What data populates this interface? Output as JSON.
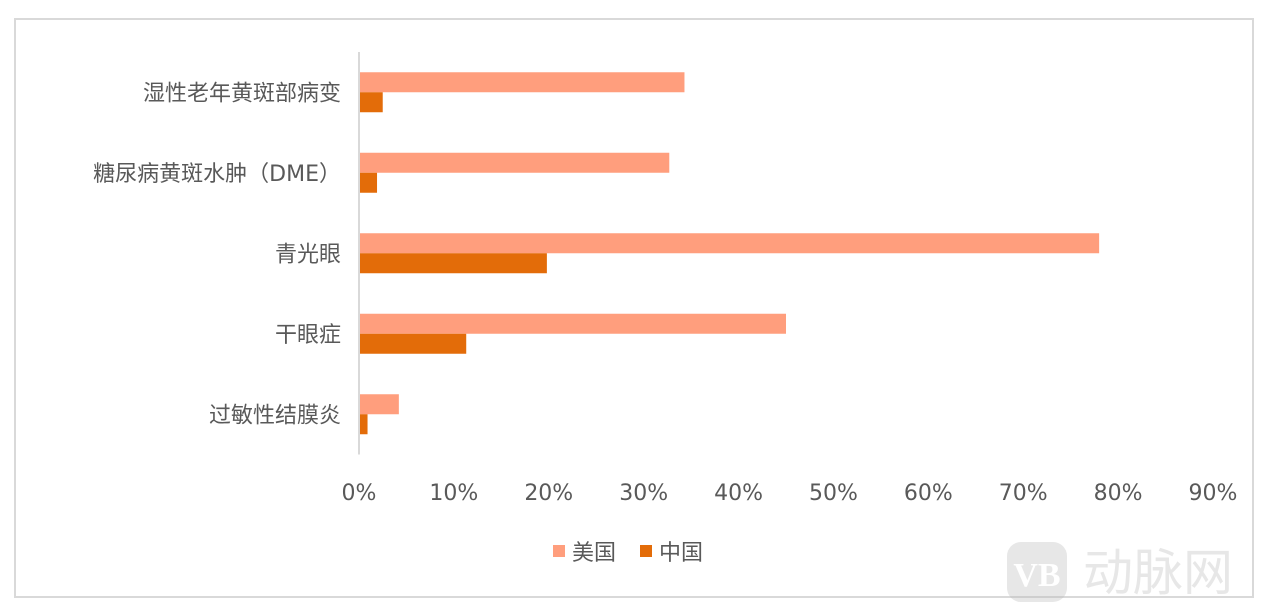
{
  "chart_data": {
    "type": "bar",
    "orientation": "horizontal",
    "categories": [
      "湿性老年黄斑部病变",
      "糖尿病黄斑水肿（DME）",
      "青光眼",
      "干眼症",
      "过敏性结膜炎"
    ],
    "series": [
      {
        "name": "美国",
        "color": "#ff9e7d",
        "values": [
          34.3,
          32.7,
          78.0,
          45.0,
          4.2
        ]
      },
      {
        "name": "中国",
        "color": "#e36c09",
        "values": [
          2.5,
          1.9,
          19.8,
          11.3,
          0.9
        ]
      }
    ],
    "xlim": [
      0,
      90
    ],
    "xticks": [
      "0%",
      "10%",
      "20%",
      "30%",
      "40%",
      "50%",
      "60%",
      "70%",
      "80%",
      "90%"
    ],
    "grid": false,
    "legend_position": "bottom"
  },
  "watermark": {
    "text": "动脉网",
    "logo": "VB"
  }
}
